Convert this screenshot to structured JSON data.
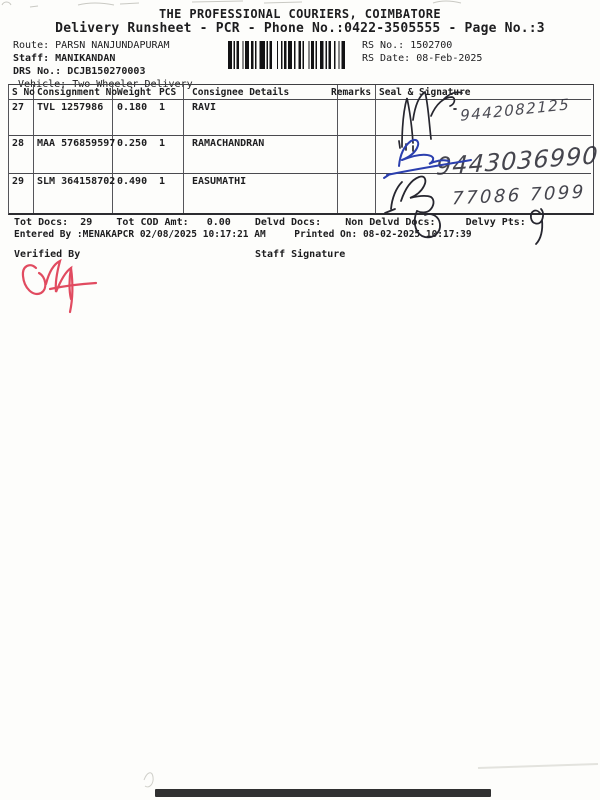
{
  "document": {
    "title": "THE PROFESSIONAL COURIERS, COIMBATORE",
    "subtitle": "Delivery Runsheet - PCR - Phone No.:0422-3505555 - Page No.:3"
  },
  "info": {
    "route_label": "Route:",
    "route_value": "PARSN NANJUNDAPURAM",
    "staff_label": "Staff:",
    "staff_value": "MANIKANDAN",
    "drs_label": "DRS No.:",
    "drs_value": "DCJB150270003",
    "vehicle_label": "Vehicle:",
    "vehicle_value": "Two Wheeler Delivery",
    "rs_no_label": "RS No.:",
    "rs_no_value": "1502700",
    "rs_date_label": "RS Date:",
    "rs_date_value": "08-Feb-2025"
  },
  "table": {
    "headers": {
      "s_no": "S No",
      "consignment_no": "Consignment No",
      "weight": "Weight",
      "pcs": "PCS",
      "consignee": "Consignee Details",
      "remarks": "Remarks",
      "seal": "Seal & Signature"
    },
    "rows": [
      {
        "s_no": "27",
        "consignment_no": "TVL 1257986",
        "weight": "0.180",
        "pcs": "1",
        "consignee": "RAVI",
        "remarks": ""
      },
      {
        "s_no": "28",
        "consignment_no": "MAA 576859597",
        "weight": "0.250",
        "pcs": "1",
        "consignee": "RAMACHANDRAN",
        "remarks": ""
      },
      {
        "s_no": "29",
        "consignment_no": "SLM 364158702",
        "weight": "0.490",
        "pcs": "1",
        "consignee": "EASUMATHI",
        "remarks": ""
      }
    ]
  },
  "handwriting": {
    "row27_phone": "9442082125",
    "row28_phone": "9443036990",
    "row29_phone": "77086 7099"
  },
  "totals": {
    "tot_docs_label": "Tot Docs:",
    "tot_docs_value": "29",
    "tot_cod_label": "Tot COD Amt:",
    "tot_cod_value": "0.00",
    "delvd_label": "Delvd Docs:",
    "delvd_value": "",
    "non_delvd_label": "Non Delvd Docs:",
    "non_delvd_value": "",
    "delvy_pts_label": "Delvy Pts:",
    "delvy_pts_value": ""
  },
  "footer": {
    "entered_by_label": "Entered By :",
    "entered_by_value": "MENAKAPCR 02/08/2025 10:17:21 AM",
    "printed_on_label": "Printed On:",
    "printed_on_value": "08-02-2025 10:17:39",
    "verified_by_label": "Verified By",
    "staff_signature_label": "Staff Signature"
  },
  "colors": {
    "print_black": "#1d1d1f",
    "ink_black": "#2c2c36",
    "ink_blue": "#2b3fae",
    "ink_red": "#e14b60"
  }
}
